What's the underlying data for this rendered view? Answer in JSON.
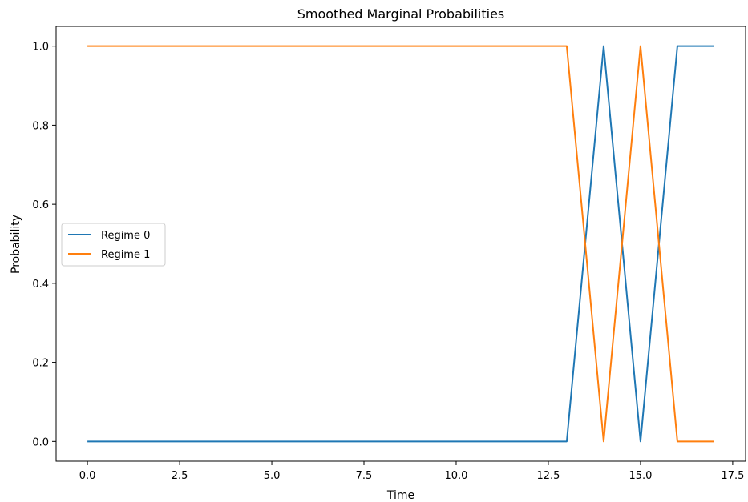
{
  "chart_data": {
    "type": "line",
    "title": "Smoothed Marginal Probabilities",
    "xlabel": "Time",
    "ylabel": "Probability",
    "x": [
      0,
      1,
      2,
      3,
      4,
      5,
      6,
      7,
      8,
      9,
      10,
      11,
      12,
      13,
      14,
      15,
      16,
      17
    ],
    "xlim": [
      -0.85,
      17.85
    ],
    "ylim": [
      -0.05,
      1.05
    ],
    "xticks": [
      0.0,
      2.5,
      5.0,
      7.5,
      10.0,
      12.5,
      15.0,
      17.5
    ],
    "xtick_labels": [
      "0.0",
      "2.5",
      "5.0",
      "7.5",
      "10.0",
      "12.5",
      "15.0",
      "17.5"
    ],
    "yticks": [
      0.0,
      0.2,
      0.4,
      0.6,
      0.8,
      1.0
    ],
    "ytick_labels": [
      "0.0",
      "0.2",
      "0.4",
      "0.6",
      "0.8",
      "1.0"
    ],
    "grid": false,
    "legend_position": "center-left",
    "series": [
      {
        "name": "Regime 0",
        "color": "#1f77b4",
        "values": [
          0,
          0,
          0,
          0,
          0,
          0,
          0,
          0,
          0,
          0,
          0,
          0,
          0,
          0,
          1,
          0,
          1,
          1
        ]
      },
      {
        "name": "Regime 1",
        "color": "#ff7f0e",
        "values": [
          1,
          1,
          1,
          1,
          1,
          1,
          1,
          1,
          1,
          1,
          1,
          1,
          1,
          1,
          0,
          1,
          0,
          0
        ]
      }
    ]
  }
}
